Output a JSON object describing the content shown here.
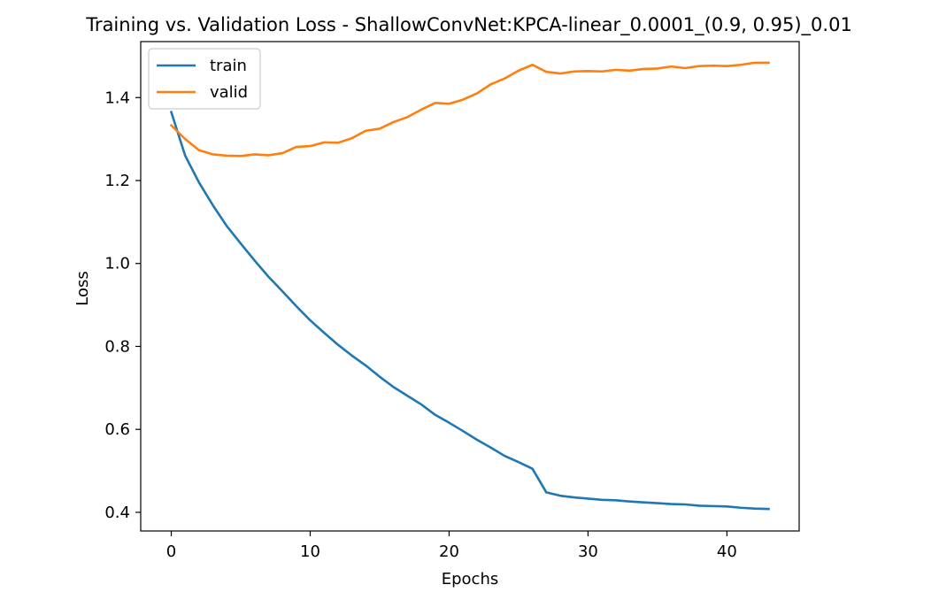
{
  "chart_data": {
    "type": "line",
    "title": "Training vs. Validation Loss - ShallowConvNet:KPCA-linear_0.0001_(0.9, 0.95)_0.01",
    "xlabel": "Epochs",
    "ylabel": "Loss",
    "xlim": [
      -2.2,
      45.2
    ],
    "ylim": [
      0.355,
      1.535
    ],
    "xticks": [
      0,
      10,
      20,
      30,
      40
    ],
    "xtick_labels": [
      "0",
      "10",
      "20",
      "30",
      "40"
    ],
    "yticks": [
      0.4,
      0.6,
      0.8,
      1.0,
      1.2,
      1.4
    ],
    "ytick_labels": [
      "0.4",
      "0.6",
      "0.8",
      "1.0",
      "1.2",
      "1.4"
    ],
    "grid": false,
    "legend_position": "top-left",
    "x": [
      0,
      1,
      2,
      3,
      4,
      5,
      6,
      7,
      8,
      9,
      10,
      11,
      12,
      13,
      14,
      15,
      16,
      17,
      18,
      19,
      20,
      21,
      22,
      23,
      24,
      25,
      26,
      27,
      28,
      29,
      30,
      31,
      32,
      33,
      34,
      35,
      36,
      37,
      38,
      39,
      40,
      41,
      42,
      43
    ],
    "series": [
      {
        "name": "train",
        "color": "#1f77b4",
        "values": [
          1.365,
          1.26,
          1.195,
          1.14,
          1.09,
          1.048,
          1.007,
          0.968,
          0.933,
          0.897,
          0.863,
          0.833,
          0.804,
          0.778,
          0.754,
          0.727,
          0.702,
          0.681,
          0.66,
          0.635,
          0.616,
          0.596,
          0.575,
          0.556,
          0.536,
          0.521,
          0.505,
          0.448,
          0.44,
          0.436,
          0.433,
          0.43,
          0.429,
          0.426,
          0.424,
          0.422,
          0.42,
          0.419,
          0.416,
          0.415,
          0.414,
          0.411,
          0.409,
          0.408
        ]
      },
      {
        "name": "valid",
        "color": "#ff7f0e",
        "values": [
          1.333,
          1.3,
          1.273,
          1.263,
          1.26,
          1.259,
          1.263,
          1.261,
          1.266,
          1.281,
          1.283,
          1.292,
          1.291,
          1.302,
          1.32,
          1.325,
          1.341,
          1.353,
          1.371,
          1.387,
          1.385,
          1.395,
          1.41,
          1.432,
          1.446,
          1.465,
          1.479,
          1.462,
          1.458,
          1.463,
          1.464,
          1.463,
          1.467,
          1.465,
          1.469,
          1.47,
          1.475,
          1.471,
          1.476,
          1.477,
          1.476,
          1.479,
          1.484,
          1.484
        ]
      }
    ]
  }
}
